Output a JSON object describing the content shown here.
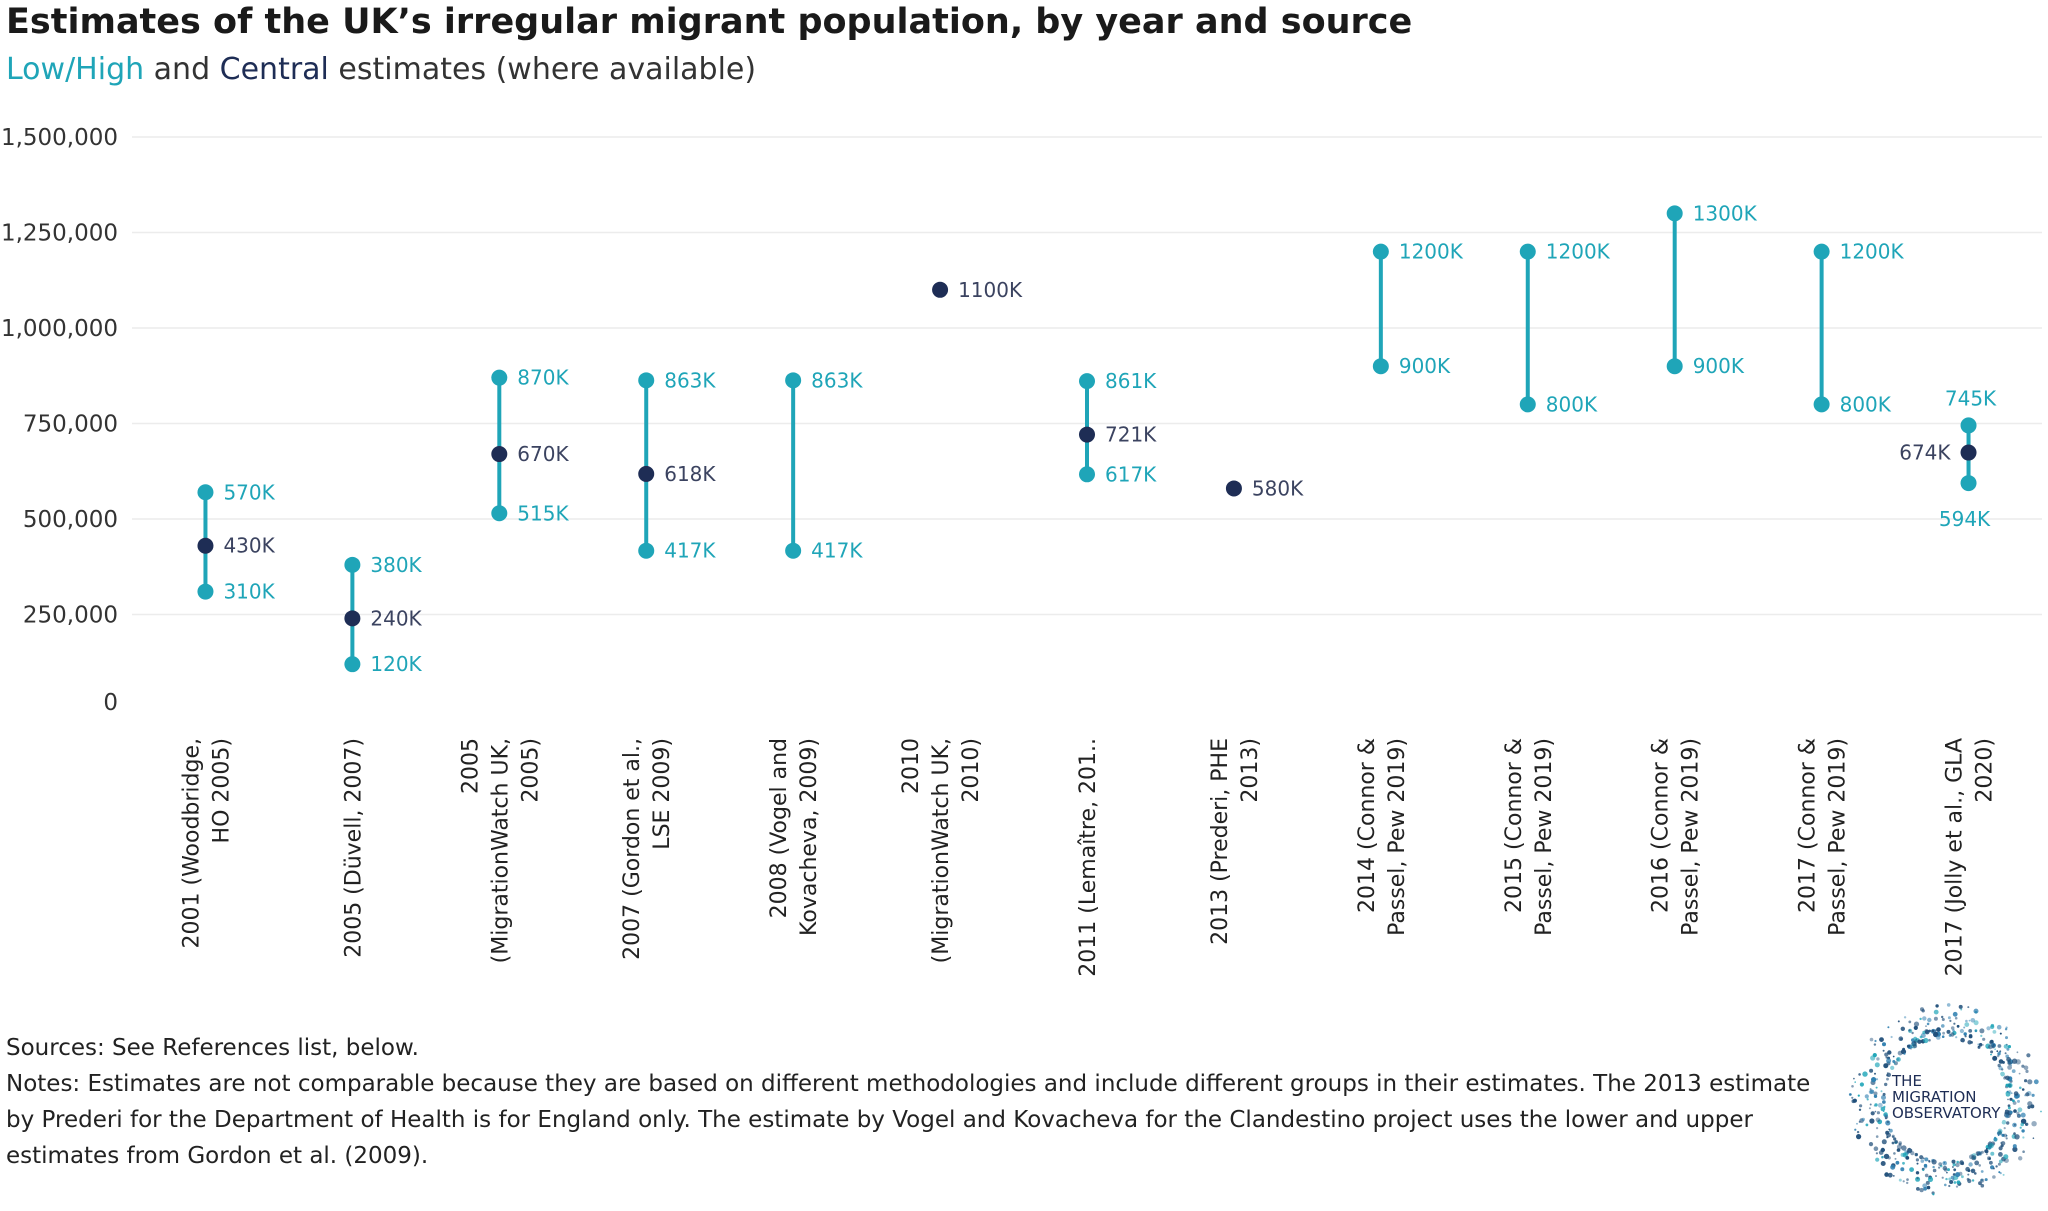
{
  "header": {
    "title": "Estimates of the UK’s irregular migrant population, by year and source",
    "subtitle_lowhigh": "Low/High",
    "subtitle_and": " and ",
    "subtitle_central": "Central",
    "subtitle_rest": " estimates (where available)"
  },
  "colors": {
    "low_high": "#1fa5b8",
    "central": "#1e2d55"
  },
  "chart_data": {
    "type": "scatter",
    "title": "Estimates of the UK’s irregular migrant population, by year and source",
    "ylim": [
      0,
      1500000
    ],
    "yticks": [
      0,
      250000,
      500000,
      750000,
      1000000,
      1250000,
      1500000
    ],
    "ytick_labels": [
      "0",
      "250,000",
      "500,000",
      "750,000",
      "1,000,000",
      "1,250,000",
      "1,500,000"
    ],
    "grid": true,
    "categories": [
      {
        "label": [
          "2001 (Woodbridge,",
          "HO 2005)"
        ],
        "low": 310000,
        "central": 430000,
        "high": 570000,
        "low_label": "310K",
        "central_label": "430K",
        "high_label": "570K"
      },
      {
        "label": [
          "2005 (Düvell, 2007)"
        ],
        "low": 120000,
        "central": 240000,
        "high": 380000,
        "low_label": "120K",
        "central_label": "240K",
        "high_label": "380K"
      },
      {
        "label": [
          "2005",
          "(MigrationWatch UK,",
          "2005)"
        ],
        "low": 515000,
        "central": 670000,
        "high": 870000,
        "low_label": "515K",
        "central_label": "670K",
        "high_label": "870K"
      },
      {
        "label": [
          "2007 (Gordon et al.,",
          "LSE 2009)"
        ],
        "low": 417000,
        "central": 618000,
        "high": 863000,
        "low_label": "417K",
        "central_label": "618K",
        "high_label": "863K"
      },
      {
        "label": [
          "2008 (Vogel and",
          "Kovacheva, 2009)"
        ],
        "low": 417000,
        "central": null,
        "high": 863000,
        "low_label": "417K",
        "central_label": null,
        "high_label": "863K"
      },
      {
        "label": [
          "2010",
          "(MigrationWatch UK,",
          "2010)"
        ],
        "low": null,
        "central": 1100000,
        "high": null,
        "low_label": null,
        "central_label": "1100K",
        "high_label": null
      },
      {
        "label": [
          "2011 (Lemaître, 201.."
        ],
        "low": 617000,
        "central": 721000,
        "high": 861000,
        "low_label": "617K",
        "central_label": "721K",
        "high_label": "861K"
      },
      {
        "label": [
          "2013 (Prederi, PHE",
          "2013)"
        ],
        "low": null,
        "central": 580000,
        "high": null,
        "low_label": null,
        "central_label": "580K",
        "high_label": null
      },
      {
        "label": [
          "2014 (Connor &",
          "Passel, Pew 2019)"
        ],
        "low": 900000,
        "central": null,
        "high": 1200000,
        "low_label": "900K",
        "central_label": null,
        "high_label": "1200K"
      },
      {
        "label": [
          "2015 (Connor &",
          "Passel, Pew 2019)"
        ],
        "low": 800000,
        "central": null,
        "high": 1200000,
        "low_label": "800K",
        "central_label": null,
        "high_label": "1200K"
      },
      {
        "label": [
          "2016 (Connor &",
          "Passel, Pew 2019)"
        ],
        "low": 900000,
        "central": null,
        "high": 1300000,
        "low_label": "900K",
        "central_label": null,
        "high_label": "1300K"
      },
      {
        "label": [
          "2017 (Connor &",
          "Passel, Pew 2019)"
        ],
        "low": 800000,
        "central": null,
        "high": 1200000,
        "low_label": "800K",
        "central_label": null,
        "high_label": "1200K"
      },
      {
        "label": [
          "2017 (Jolly et al., GLA",
          "2020)"
        ],
        "low": 594000,
        "central": 674000,
        "high": 745000,
        "low_label": "594K",
        "central_label": "674K",
        "high_label": "745K"
      }
    ]
  },
  "notes": {
    "sources": "Sources: See References list, below.",
    "notes": "Notes: Estimates are not comparable because they are based on different methodologies and include different groups in their estimates. The 2013 estimate by Prederi for the Department of Health is for England only. The estimate by Vogel and Kovacheva for the Clandestino project uses the lower and upper estimates from Gordon et al. (2009)."
  },
  "logo": {
    "line1": "THE",
    "line2": "MIGRATION",
    "line3": "OBSERVATORY"
  }
}
